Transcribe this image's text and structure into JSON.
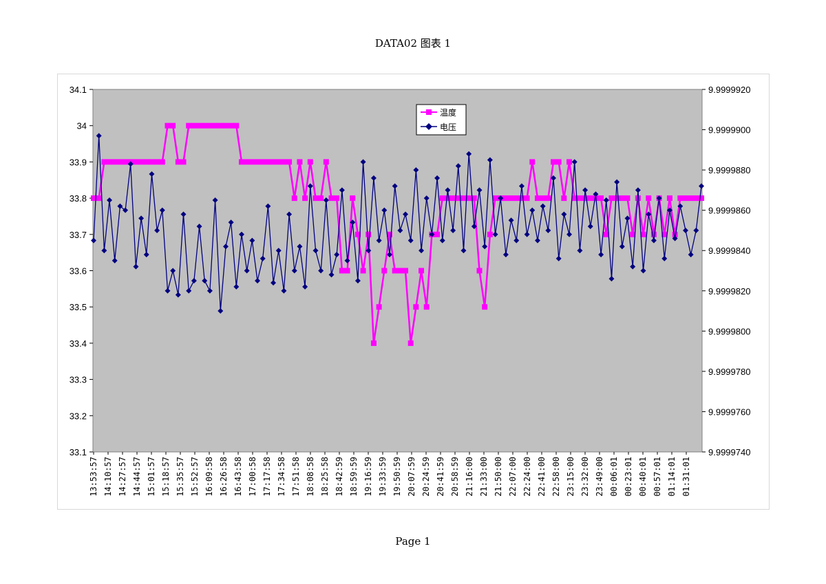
{
  "page": {
    "title": "DATA02 图表 1",
    "footer": "Page 1"
  },
  "chart_data": {
    "type": "line",
    "title": "",
    "plot_bg": "#c0c0c0",
    "grid": false,
    "legend_placement": "top-center",
    "y_left": {
      "ylim": [
        33.1,
        34.1
      ],
      "ticks": [
        "33.1",
        "33.2",
        "33.3",
        "33.4",
        "33.5",
        "33.6",
        "33.7",
        "33.8",
        "33.9",
        "34",
        "34.1"
      ]
    },
    "y_right": {
      "ylim": [
        9.999974,
        9.999992
      ],
      "ticks": [
        "9.9999740",
        "9.9999760",
        "9.9999780",
        "9.9999800",
        "9.9999820",
        "9.9999840",
        "9.9999860",
        "9.9999880",
        "9.9999900",
        "9.9999920"
      ]
    },
    "x_tick_labels": [
      "13:53:57",
      "14:10:57",
      "14:27:57",
      "14:44:57",
      "15:01:57",
      "15:18:57",
      "15:35:57",
      "15:52:57",
      "16:09:58",
      "16:26:58",
      "16:43:58",
      "17:00:58",
      "17:17:58",
      "17:34:58",
      "17:51:58",
      "18:08:58",
      "18:25:58",
      "18:42:59",
      "18:59:59",
      "19:16:59",
      "19:33:59",
      "19:50:59",
      "20:07:59",
      "20:24:59",
      "20:41:59",
      "20:58:59",
      "21:16:00",
      "21:33:00",
      "21:50:00",
      "22:07:00",
      "22:24:00",
      "22:41:00",
      "22:58:00",
      "23:15:00",
      "23:32:00",
      "23:49:00",
      "00:06:01",
      "00:23:01",
      "00:40:01",
      "00:57:01",
      "01:14:01",
      "01:31:01"
    ],
    "series": [
      {
        "name": "温度",
        "axis": "left",
        "color": "#ff00ff",
        "marker": "square",
        "values": [
          33.8,
          33.8,
          33.9,
          33.9,
          33.9,
          33.9,
          33.9,
          33.9,
          33.9,
          33.9,
          33.9,
          33.9,
          33.9,
          33.9,
          34.0,
          34.0,
          33.9,
          33.9,
          34.0,
          34.0,
          34.0,
          34.0,
          34.0,
          34.0,
          34.0,
          34.0,
          34.0,
          34.0,
          33.9,
          33.9,
          33.9,
          33.9,
          33.9,
          33.9,
          33.9,
          33.9,
          33.9,
          33.9,
          33.8,
          33.9,
          33.8,
          33.9,
          33.8,
          33.8,
          33.9,
          33.8,
          33.8,
          33.6,
          33.6,
          33.8,
          33.7,
          33.6,
          33.7,
          33.4,
          33.5,
          33.6,
          33.7,
          33.6,
          33.6,
          33.6,
          33.4,
          33.5,
          33.6,
          33.5,
          33.7,
          33.7,
          33.8,
          33.8,
          33.8,
          33.8,
          33.8,
          33.8,
          33.8,
          33.6,
          33.5,
          33.7,
          33.8,
          33.8,
          33.8,
          33.8,
          33.8,
          33.8,
          33.8,
          33.9,
          33.8,
          33.8,
          33.8,
          33.9,
          33.9,
          33.8,
          33.9,
          33.8,
          33.8,
          33.8,
          33.8,
          33.8,
          33.8,
          33.7,
          33.8,
          33.8,
          33.8,
          33.8,
          33.7,
          33.8,
          33.7,
          33.8,
          33.7,
          33.8,
          33.7,
          33.8,
          33.7,
          33.8,
          33.8,
          33.8,
          33.8,
          33.8
        ]
      },
      {
        "name": "电压",
        "axis": "right",
        "color": "#000080",
        "marker": "diamond",
        "values": [
          9.9999845,
          9.9999897,
          9.999984,
          9.9999865,
          9.9999835,
          9.9999862,
          9.999986,
          9.9999883,
          9.9999832,
          9.9999856,
          9.9999838,
          9.9999878,
          9.999985,
          9.999986,
          9.999982,
          9.999983,
          9.9999818,
          9.9999858,
          9.999982,
          9.9999825,
          9.9999852,
          9.9999825,
          9.999982,
          9.9999865,
          9.999981,
          9.9999842,
          9.9999854,
          9.9999822,
          9.9999848,
          9.999983,
          9.9999845,
          9.9999825,
          9.9999836,
          9.9999862,
          9.9999824,
          9.999984,
          9.999982,
          9.9999858,
          9.999983,
          9.9999842,
          9.9999822,
          9.9999872,
          9.999984,
          9.999983,
          9.9999865,
          9.9999828,
          9.9999838,
          9.999987,
          9.9999835,
          9.9999854,
          9.9999825,
          9.9999884,
          9.999984,
          9.9999876,
          9.9999845,
          9.999986,
          9.9999838,
          9.9999872,
          9.999985,
          9.9999858,
          9.9999845,
          9.999988,
          9.999984,
          9.9999866,
          9.9999848,
          9.9999876,
          9.9999845,
          9.999987,
          9.999985,
          9.9999882,
          9.999984,
          9.9999888,
          9.9999852,
          9.999987,
          9.9999842,
          9.9999885,
          9.9999848,
          9.9999866,
          9.9999838,
          9.9999855,
          9.9999845,
          9.9999872,
          9.9999848,
          9.999986,
          9.9999845,
          9.9999862,
          9.999985,
          9.9999876,
          9.9999836,
          9.9999858,
          9.9999848,
          9.9999884,
          9.999984,
          9.999987,
          9.9999852,
          9.9999868,
          9.9999838,
          9.9999865,
          9.9999826,
          9.9999874,
          9.9999842,
          9.9999856,
          9.9999832,
          9.999987,
          9.999983,
          9.9999858,
          9.9999845,
          9.9999866,
          9.9999836,
          9.999986,
          9.9999846,
          9.9999862,
          9.999985,
          9.9999838,
          9.999985,
          9.9999872
        ]
      }
    ]
  }
}
